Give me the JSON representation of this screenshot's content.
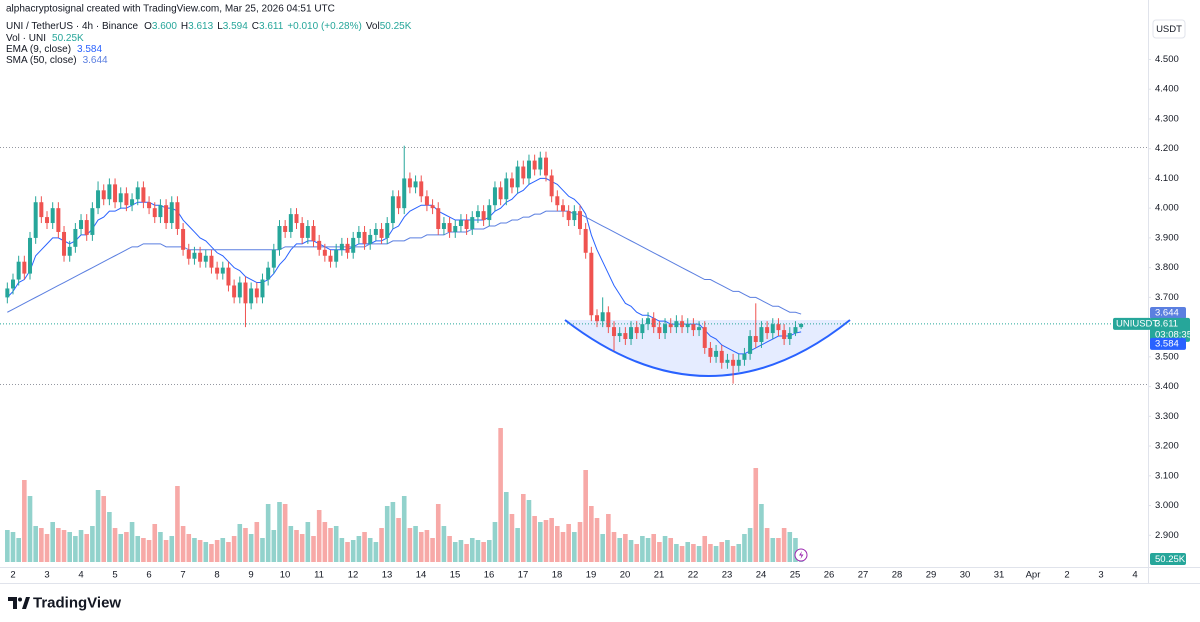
{
  "chart_data": {
    "type": "candlestick",
    "watermark": "alphacryptosignal created with TradingView.com, Mar 25, 2026 04:51 UTC",
    "symbol_title": "UNI / TetherUS · 4h · Binance",
    "ohlc_legend": {
      "open_label": "O",
      "open": "3.600",
      "high_label": "H",
      "low_label": "L",
      "close_label": "C",
      "change": "+0.010 (+0.28%)",
      "volume_label": "Vol"
    },
    "currency": "USDT",
    "ylim": [
      2.79,
      4.7
    ],
    "yticks": [
      {
        "value": 2.9,
        "label": "2.900"
      },
      {
        "value": 3.0,
        "label": "3.000"
      },
      {
        "value": 3.1,
        "label": "3.100"
      },
      {
        "value": 3.2,
        "label": "3.200"
      },
      {
        "value": 3.3,
        "label": "3.300"
      },
      {
        "value": 3.4,
        "label": "3.400"
      },
      {
        "value": 3.5,
        "label": "3.500"
      },
      {
        "value": 3.6,
        "label": "3.600"
      },
      {
        "value": 3.7,
        "label": "3.700"
      },
      {
        "value": 3.8,
        "label": "3.800"
      },
      {
        "value": 3.9,
        "label": "3.900"
      },
      {
        "value": 4.0,
        "label": "4.000"
      },
      {
        "value": 4.1,
        "label": "4.100"
      },
      {
        "value": 4.2,
        "label": "4.200"
      },
      {
        "value": 4.3,
        "label": "4.300"
      },
      {
        "value": 4.4,
        "label": "4.400"
      },
      {
        "value": 4.5,
        "label": "4.500"
      }
    ],
    "x_labels": [
      "2",
      "3",
      "4",
      "5",
      "6",
      "7",
      "8",
      "9",
      "10",
      "11",
      "12",
      "13",
      "14",
      "15",
      "16",
      "17",
      "18",
      "19",
      "20",
      "21",
      "22",
      "23",
      "24",
      "25",
      "26",
      "27",
      "28",
      "29",
      "30",
      "31",
      "Apr",
      "2",
      "3",
      "4"
    ],
    "up_color": "#26a69a",
    "down_color": "#ef5350",
    "open": [
      3.7,
      3.73,
      3.76,
      3.82,
      3.78,
      3.9,
      4.02,
      3.97,
      3.95,
      4.0,
      3.92,
      3.84,
      3.87,
      3.93,
      3.96,
      3.91,
      4.0,
      4.06,
      4.03,
      4.08,
      4.02,
      4.05,
      4.01,
      4.03,
      4.07,
      4.02,
      4.0,
      3.97,
      4.01,
      3.95,
      4.02,
      3.93,
      3.86,
      3.83,
      3.85,
      3.82,
      3.84,
      3.8,
      3.78,
      3.8,
      3.74,
      3.7,
      3.75,
      3.68,
      3.73,
      3.7,
      3.76,
      3.8,
      3.86,
      3.94,
      3.92,
      3.98,
      3.95,
      3.9,
      3.94,
      3.89,
      3.86,
      3.84,
      3.82,
      3.86,
      3.88,
      3.85,
      3.9,
      3.92,
      3.88,
      3.91,
      3.93,
      3.9,
      3.95,
      4.04,
      4.0,
      4.1,
      4.07,
      4.09,
      4.04,
      4.01,
      4.0,
      3.93,
      3.95,
      3.92,
      3.94,
      3.96,
      3.93,
      3.97,
      3.99,
      3.96,
      4.01,
      4.07,
      4.03,
      4.1,
      4.07,
      4.14,
      4.1,
      4.16,
      4.13,
      4.17,
      4.11,
      4.04,
      4.01,
      3.99,
      3.96,
      3.99,
      3.93,
      3.85,
      3.64,
      3.62,
      3.65,
      3.6,
      3.57,
      3.58,
      3.56,
      3.6,
      3.58,
      3.61,
      3.63,
      3.6,
      3.58,
      3.61,
      3.6,
      3.62,
      3.6,
      3.61,
      3.59,
      3.6,
      3.53,
      3.5,
      3.52,
      3.48,
      3.49,
      3.47,
      3.49,
      3.51,
      3.57,
      3.55,
      3.6,
      3.58,
      3.61,
      3.59,
      3.56,
      3.58,
      3.6
    ],
    "high": [
      3.75,
      3.78,
      3.84,
      3.84,
      3.92,
      4.04,
      4.04,
      3.99,
      4.02,
      4.02,
      3.94,
      3.89,
      3.95,
      3.98,
      3.98,
      4.02,
      4.09,
      4.08,
      4.1,
      4.1,
      4.07,
      4.07,
      4.05,
      4.09,
      4.09,
      4.04,
      4.02,
      4.03,
      4.03,
      4.04,
      4.04,
      3.95,
      3.88,
      3.87,
      3.87,
      3.86,
      3.86,
      3.82,
      3.82,
      3.82,
      3.76,
      3.77,
      3.77,
      3.75,
      3.75,
      3.78,
      3.82,
      3.88,
      3.96,
      3.96,
      4.0,
      4.0,
      3.97,
      3.96,
      3.96,
      3.91,
      3.88,
      3.86,
      3.88,
      3.9,
      3.9,
      3.92,
      3.94,
      3.94,
      3.93,
      3.95,
      3.95,
      3.97,
      4.06,
      4.06,
      4.21,
      4.12,
      4.11,
      4.11,
      4.06,
      4.03,
      4.02,
      3.97,
      3.97,
      3.96,
      3.98,
      3.98,
      3.99,
      4.01,
      4.01,
      4.03,
      4.09,
      4.09,
      4.12,
      4.12,
      4.16,
      4.16,
      4.18,
      4.18,
      4.19,
      4.19,
      4.13,
      4.06,
      4.03,
      4.01,
      4.01,
      4.01,
      3.95,
      3.87,
      3.66,
      3.7,
      3.67,
      3.62,
      3.6,
      3.6,
      3.62,
      3.62,
      3.63,
      3.65,
      3.65,
      3.62,
      3.63,
      3.63,
      3.64,
      3.64,
      3.63,
      3.63,
      3.62,
      3.62,
      3.55,
      3.54,
      3.54,
      3.51,
      3.51,
      3.51,
      3.53,
      3.59,
      3.68,
      3.62,
      3.62,
      3.63,
      3.63,
      3.61,
      3.6,
      3.62,
      3.613
    ],
    "low": [
      3.68,
      3.71,
      3.74,
      3.76,
      3.76,
      3.88,
      3.95,
      3.93,
      3.93,
      3.9,
      3.82,
      3.82,
      3.85,
      3.91,
      3.89,
      3.89,
      3.98,
      4.01,
      4.01,
      4.0,
      4.0,
      3.99,
      3.99,
      4.01,
      4.0,
      3.98,
      3.95,
      3.95,
      3.93,
      3.93,
      3.91,
      3.84,
      3.81,
      3.81,
      3.8,
      3.8,
      3.78,
      3.76,
      3.76,
      3.72,
      3.68,
      3.68,
      3.6,
      3.66,
      3.68,
      3.68,
      3.74,
      3.78,
      3.84,
      3.9,
      3.9,
      3.93,
      3.88,
      3.88,
      3.87,
      3.84,
      3.82,
      3.8,
      3.8,
      3.84,
      3.83,
      3.83,
      3.88,
      3.86,
      3.86,
      3.89,
      3.88,
      3.88,
      3.93,
      3.98,
      3.98,
      4.05,
      4.05,
      4.02,
      3.99,
      3.98,
      3.91,
      3.91,
      3.9,
      3.9,
      3.92,
      3.91,
      3.91,
      3.95,
      3.94,
      3.94,
      3.99,
      4.01,
      4.01,
      4.05,
      4.05,
      4.08,
      4.08,
      4.11,
      4.11,
      4.09,
      4.02,
      3.99,
      3.97,
      3.94,
      3.94,
      3.91,
      3.83,
      3.62,
      3.6,
      3.6,
      3.58,
      3.52,
      3.55,
      3.54,
      3.54,
      3.56,
      3.56,
      3.59,
      3.58,
      3.56,
      3.56,
      3.58,
      3.58,
      3.58,
      3.58,
      3.57,
      3.57,
      3.51,
      3.48,
      3.48,
      3.46,
      3.46,
      3.41,
      3.45,
      3.47,
      3.49,
      3.53,
      3.53,
      3.56,
      3.56,
      3.57,
      3.54,
      3.54,
      3.57,
      3.594
    ],
    "close": [
      3.73,
      3.76,
      3.82,
      3.78,
      3.9,
      4.02,
      3.97,
      3.95,
      4.0,
      3.92,
      3.84,
      3.87,
      3.93,
      3.96,
      3.91,
      4.0,
      4.06,
      4.03,
      4.08,
      4.02,
      4.05,
      4.01,
      4.03,
      4.07,
      4.02,
      4.0,
      3.97,
      4.01,
      3.95,
      4.02,
      3.93,
      3.86,
      3.83,
      3.85,
      3.82,
      3.84,
      3.8,
      3.78,
      3.8,
      3.74,
      3.7,
      3.75,
      3.68,
      3.73,
      3.7,
      3.76,
      3.8,
      3.86,
      3.94,
      3.92,
      3.98,
      3.95,
      3.9,
      3.94,
      3.89,
      3.86,
      3.84,
      3.82,
      3.86,
      3.88,
      3.85,
      3.9,
      3.92,
      3.88,
      3.91,
      3.93,
      3.9,
      3.95,
      4.04,
      4.0,
      4.1,
      4.07,
      4.09,
      4.04,
      4.01,
      4.0,
      3.93,
      3.95,
      3.92,
      3.94,
      3.96,
      3.93,
      3.97,
      3.99,
      3.96,
      4.01,
      4.07,
      4.03,
      4.1,
      4.07,
      4.14,
      4.1,
      4.16,
      4.13,
      4.17,
      4.11,
      4.04,
      4.01,
      3.99,
      3.96,
      3.99,
      3.93,
      3.85,
      3.64,
      3.62,
      3.65,
      3.6,
      3.57,
      3.58,
      3.56,
      3.6,
      3.58,
      3.61,
      3.63,
      3.6,
      3.58,
      3.61,
      3.6,
      3.62,
      3.6,
      3.61,
      3.59,
      3.6,
      3.53,
      3.5,
      3.52,
      3.48,
      3.49,
      3.47,
      3.49,
      3.51,
      3.57,
      3.55,
      3.6,
      3.58,
      3.61,
      3.59,
      3.56,
      3.58,
      3.6,
      3.611
    ],
    "volume": {
      "name": "Vol · UNI",
      "values": [
        160,
        150,
        120,
        410,
        330,
        180,
        170,
        140,
        200,
        170,
        160,
        150,
        130,
        160,
        140,
        180,
        360,
        330,
        250,
        170,
        140,
        150,
        200,
        130,
        120,
        110,
        190,
        150,
        110,
        130,
        380,
        180,
        140,
        120,
        110,
        100,
        90,
        110,
        120,
        100,
        130,
        190,
        170,
        140,
        200,
        120,
        290,
        160,
        300,
        290,
        180,
        160,
        140,
        200,
        130,
        260,
        200,
        170,
        180,
        120,
        100,
        110,
        130,
        150,
        120,
        100,
        170,
        280,
        300,
        220,
        330,
        170,
        180,
        150,
        160,
        120,
        290,
        180,
        130,
        100,
        110,
        90,
        120,
        110,
        100,
        110,
        200,
        670,
        350,
        240,
        170,
        340,
        310,
        230,
        200,
        210,
        220,
        180,
        150,
        190,
        150,
        200,
        460,
        280,
        220,
        140,
        240,
        150,
        120,
        140,
        110,
        90,
        130,
        120,
        140,
        100,
        130,
        120,
        90,
        80,
        100,
        90,
        80,
        130,
        90,
        80,
        100,
        110,
        80,
        90,
        140,
        170,
        470,
        290,
        170,
        120,
        120,
        170,
        150,
        120,
        50.25
      ],
      "value_label": "50.25K"
    },
    "series": [
      {
        "name": "EMA (9, close)",
        "color": "#2962ff",
        "values": [
          3.7,
          3.72,
          3.75,
          3.76,
          3.79,
          3.84,
          3.86,
          3.88,
          3.9,
          3.9,
          3.89,
          3.88,
          3.89,
          3.91,
          3.91,
          3.93,
          3.96,
          3.97,
          3.99,
          3.99,
          4.0,
          4.0,
          4.01,
          4.02,
          4.02,
          4.02,
          4.01,
          4.01,
          4.0,
          4.0,
          3.99,
          3.96,
          3.94,
          3.92,
          3.9,
          3.89,
          3.87,
          3.85,
          3.84,
          3.82,
          3.8,
          3.79,
          3.77,
          3.76,
          3.75,
          3.75,
          3.76,
          3.78,
          3.81,
          3.83,
          3.86,
          3.88,
          3.88,
          3.89,
          3.89,
          3.88,
          3.87,
          3.86,
          3.86,
          3.86,
          3.86,
          3.87,
          3.88,
          3.88,
          3.88,
          3.89,
          3.89,
          3.9,
          3.93,
          3.94,
          3.97,
          3.99,
          4.0,
          4.01,
          4.01,
          4.01,
          3.99,
          3.98,
          3.97,
          3.96,
          3.96,
          3.96,
          3.96,
          3.96,
          3.96,
          3.97,
          3.99,
          4.0,
          4.02,
          4.03,
          4.05,
          4.06,
          4.08,
          4.09,
          4.1,
          4.1,
          4.09,
          4.08,
          4.06,
          4.04,
          4.03,
          4.01,
          3.98,
          3.91,
          3.86,
          3.82,
          3.78,
          3.74,
          3.71,
          3.68,
          3.67,
          3.65,
          3.64,
          3.64,
          3.63,
          3.62,
          3.62,
          3.61,
          3.61,
          3.61,
          3.61,
          3.61,
          3.61,
          3.59,
          3.57,
          3.56,
          3.54,
          3.53,
          3.52,
          3.51,
          3.51,
          3.52,
          3.53,
          3.54,
          3.55,
          3.56,
          3.57,
          3.57,
          3.57,
          3.58,
          3.584
        ]
      },
      {
        "name": "SMA (50, close)",
        "color": "#5b7fe0",
        "values": [
          3.65,
          3.66,
          3.67,
          3.68,
          3.69,
          3.7,
          3.71,
          3.72,
          3.73,
          3.74,
          3.75,
          3.76,
          3.77,
          3.78,
          3.79,
          3.8,
          3.81,
          3.82,
          3.83,
          3.84,
          3.85,
          3.86,
          3.87,
          3.87,
          3.88,
          3.88,
          3.88,
          3.88,
          3.87,
          3.87,
          3.87,
          3.87,
          3.86,
          3.86,
          3.86,
          3.86,
          3.86,
          3.86,
          3.86,
          3.86,
          3.86,
          3.86,
          3.86,
          3.86,
          3.86,
          3.86,
          3.86,
          3.86,
          3.86,
          3.87,
          3.87,
          3.87,
          3.87,
          3.87,
          3.87,
          3.87,
          3.87,
          3.87,
          3.87,
          3.87,
          3.87,
          3.87,
          3.87,
          3.87,
          3.88,
          3.88,
          3.88,
          3.88,
          3.89,
          3.89,
          3.89,
          3.9,
          3.9,
          3.9,
          3.91,
          3.91,
          3.91,
          3.91,
          3.92,
          3.92,
          3.92,
          3.92,
          3.93,
          3.93,
          3.93,
          3.94,
          3.94,
          3.95,
          3.95,
          3.96,
          3.96,
          3.97,
          3.97,
          3.98,
          3.98,
          3.99,
          3.99,
          3.99,
          3.99,
          3.99,
          3.98,
          3.98,
          3.97,
          3.96,
          3.95,
          3.94,
          3.93,
          3.92,
          3.91,
          3.9,
          3.89,
          3.88,
          3.87,
          3.86,
          3.85,
          3.84,
          3.83,
          3.82,
          3.81,
          3.8,
          3.79,
          3.78,
          3.77,
          3.76,
          3.76,
          3.75,
          3.74,
          3.73,
          3.72,
          3.72,
          3.71,
          3.7,
          3.7,
          3.69,
          3.68,
          3.67,
          3.67,
          3.66,
          3.65,
          3.65,
          3.644
        ]
      }
    ],
    "price_tag": {
      "symbol": "UNIUSDT",
      "countdown": "03:08:35"
    },
    "brand": "TradingView"
  }
}
